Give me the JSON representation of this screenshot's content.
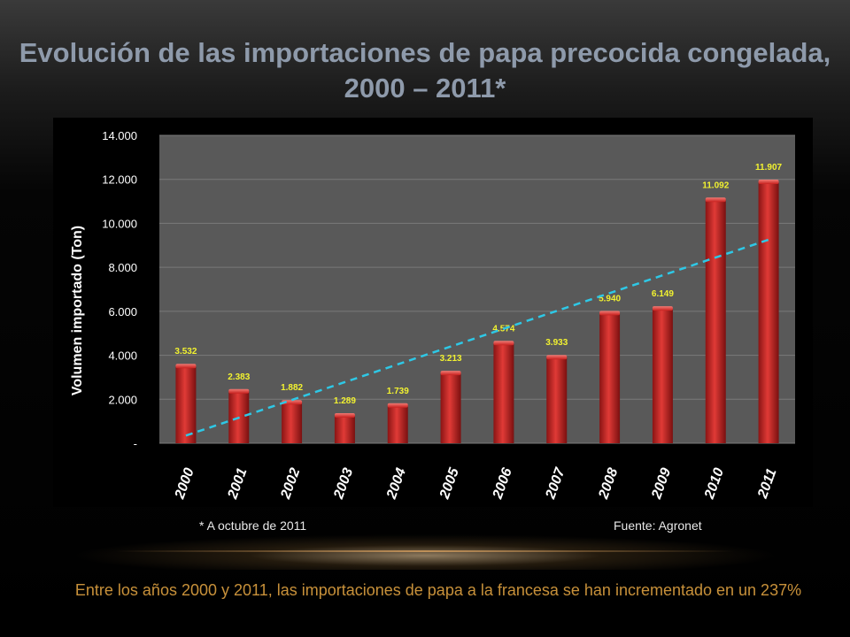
{
  "title_line1": "Evolución de las importaciones de papa precocida congelada,",
  "title_line2": "2000 – 2011*",
  "footnote_left": "* A octubre de 2011",
  "footnote_right": "Fuente: Agronet",
  "caption": "Entre los años 2000 y 2011, las importaciones de papa a la francesa se han incrementado en un 237%",
  "colors": {
    "bar": "#d9302e",
    "data_label": "#f2f230",
    "trend": "#2ec8e6",
    "plot_bg": "#595959",
    "panel_bg": "#000000",
    "axis_text": "#ffffff"
  },
  "chart_data": {
    "type": "bar",
    "categories": [
      "2000",
      "2001",
      "2002",
      "2003",
      "2004",
      "2005",
      "2006",
      "2007",
      "2008",
      "2009",
      "2010",
      "2011"
    ],
    "values": [
      3532,
      2383,
      1882,
      1289,
      1739,
      3213,
      4574,
      3933,
      5940,
      6149,
      11092,
      11907
    ],
    "data_labels": [
      "3.532",
      "2.383",
      "1.882",
      "1.289",
      "1.739",
      "3.213",
      "4.574",
      "3.933",
      "5.940",
      "6.149",
      "11.092",
      "11.907"
    ],
    "ylabel": "Volumen importado  (Ton)",
    "ylim": [
      0,
      14000
    ],
    "y_ticks": [
      0,
      2000,
      4000,
      6000,
      8000,
      10000,
      12000,
      14000
    ],
    "y_tick_labels": [
      "-",
      "2.000",
      "4.000",
      "6.000",
      "8.000",
      "10.000",
      "12.000",
      "14.000"
    ],
    "grid": true,
    "trendline": {
      "type": "linear",
      "style": "dashed"
    }
  }
}
